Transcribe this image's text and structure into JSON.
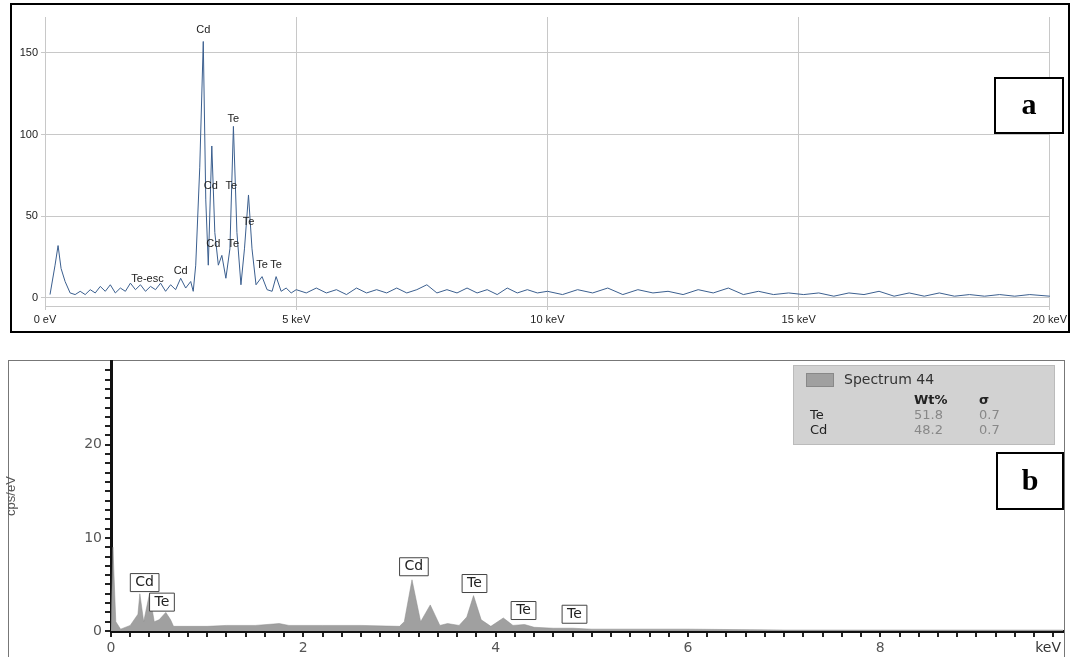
{
  "chart_data": [
    {
      "type": "line",
      "x": [
        0.1,
        0.2,
        0.26,
        0.32,
        0.4,
        0.5,
        0.6,
        0.7,
        0.8,
        0.9,
        1.0,
        1.1,
        1.2,
        1.3,
        1.4,
        1.5,
        1.6,
        1.7,
        1.8,
        1.9,
        2.0,
        2.1,
        2.2,
        2.3,
        2.4,
        2.5,
        2.6,
        2.7,
        2.8,
        2.9,
        2.95,
        3.0,
        3.08,
        3.15,
        3.2,
        3.25,
        3.32,
        3.38,
        3.45,
        3.52,
        3.6,
        3.68,
        3.75,
        3.82,
        3.9,
        3.97,
        4.05,
        4.12,
        4.2,
        4.32,
        4.42,
        4.52,
        4.6,
        4.7,
        4.8,
        4.9,
        5.0,
        5.2,
        5.4,
        5.6,
        5.8,
        6.0,
        6.2,
        6.4,
        6.6,
        6.8,
        7.0,
        7.2,
        7.4,
        7.6,
        7.8,
        8.0,
        8.2,
        8.4,
        8.6,
        8.8,
        9.0,
        9.2,
        9.4,
        9.6,
        9.8,
        10.0,
        10.3,
        10.6,
        10.9,
        11.2,
        11.5,
        11.8,
        12.1,
        12.4,
        12.7,
        13.0,
        13.3,
        13.6,
        13.9,
        14.2,
        14.5,
        14.8,
        15.1,
        15.4,
        15.7,
        16.0,
        16.3,
        16.6,
        16.9,
        17.2,
        17.5,
        17.8,
        18.1,
        18.4,
        18.7,
        19.0,
        19.3,
        19.6,
        20.0
      ],
      "series": [
        {
          "color": "#3b5f8f",
          "values": [
            2,
            20,
            32,
            18,
            10,
            3,
            2,
            4,
            2,
            5,
            3,
            7,
            4,
            8,
            3,
            6,
            4,
            9,
            5,
            8,
            4,
            7,
            5,
            9,
            4,
            8,
            5,
            12,
            6,
            10,
            4,
            20,
            80,
            157,
            60,
            20,
            93,
            40,
            20,
            26,
            12,
            30,
            105,
            40,
            8,
            30,
            63,
            30,
            8,
            13,
            5,
            4,
            13,
            4,
            6,
            3,
            5,
            3,
            6,
            3,
            5,
            2,
            6,
            3,
            5,
            3,
            6,
            3,
            5,
            8,
            3,
            5,
            3,
            6,
            3,
            5,
            2,
            6,
            3,
            5,
            3,
            4,
            2,
            5,
            3,
            6,
            2,
            5,
            3,
            4,
            2,
            5,
            3,
            6,
            2,
            4,
            2,
            3,
            2,
            3,
            1,
            3,
            2,
            4,
            1,
            3,
            1,
            3,
            1,
            2,
            1,
            2,
            1,
            2,
            1
          ]
        }
      ],
      "xlim": [
        0,
        20
      ],
      "xticks": [
        {
          "value": 0,
          "label": "0 eV"
        },
        {
          "value": 5,
          "label": "5 keV"
        },
        {
          "value": 10,
          "label": "10 keV"
        },
        {
          "value": 15,
          "label": "15 keV"
        },
        {
          "value": 20,
          "label": "20 keV"
        }
      ],
      "ylim": [
        -5,
        172
      ],
      "yticks": [
        0,
        50,
        100,
        150
      ],
      "grid": true,
      "marker": "none",
      "annotations": [
        "a",
        {
          "text": "Cd",
          "x": 3.15,
          "y": 160
        },
        {
          "text": "Te",
          "x": 3.75,
          "y": 105
        },
        {
          "text": "Cd",
          "x": 3.3,
          "y": 64
        },
        {
          "text": "Te",
          "x": 3.71,
          "y": 64
        },
        {
          "text": "Te",
          "x": 4.05,
          "y": 42
        },
        {
          "text": "Cd",
          "x": 3.35,
          "y": 29
        },
        {
          "text": "Te",
          "x": 3.75,
          "y": 29
        },
        {
          "text": "Te",
          "x": 4.32,
          "y": 16
        },
        {
          "text": "Te",
          "x": 4.6,
          "y": 16
        },
        {
          "text": "Cd",
          "x": 2.7,
          "y": 12
        },
        {
          "text": "Te-esc",
          "x": 2.04,
          "y": 7
        }
      ]
    },
    {
      "type": "area",
      "x": [
        0,
        0.02,
        0.05,
        0.1,
        0.2,
        0.28,
        0.3,
        0.34,
        0.4,
        0.45,
        0.5,
        0.57,
        0.62,
        0.65,
        0.8,
        1.0,
        1.2,
        1.5,
        1.75,
        1.85,
        2.2,
        2.6,
        3.0,
        3.05,
        3.13,
        3.22,
        3.32,
        3.42,
        3.5,
        3.62,
        3.7,
        3.77,
        3.85,
        3.95,
        4.08,
        4.18,
        4.3,
        4.4,
        4.6,
        4.8,
        5.0,
        6.0,
        7.0,
        8.0,
        9.0,
        9.9
      ],
      "series": [
        {
          "name": "Spectrum 44",
          "color": "#a0a0a0",
          "values": [
            0,
            9,
            1,
            0.2,
            0.6,
            1.8,
            4,
            1,
            4,
            1,
            1.2,
            2,
            1.2,
            0.5,
            0.5,
            0.5,
            0.6,
            0.6,
            0.8,
            0.6,
            0.6,
            0.6,
            0.5,
            1,
            5.5,
            1,
            2.8,
            0.6,
            0.8,
            0.6,
            1.5,
            3.8,
            1.2,
            0.5,
            1.4,
            0.6,
            0.7,
            0.4,
            0.3,
            0.3,
            0.2,
            0.2,
            0.1,
            0.1,
            0.1,
            0.1
          ]
        }
      ],
      "xlim": [
        0,
        9.9
      ],
      "xticks": [
        0,
        {
          "value": 0.2,
          "label": null
        },
        {
          "value": 0.4,
          "label": null
        },
        {
          "value": 0.6,
          "label": null
        },
        {
          "value": 0.8,
          "label": null
        },
        {
          "value": 1,
          "label": null
        },
        {
          "value": 1.2,
          "label": null
        },
        {
          "value": 1.4,
          "label": null
        },
        {
          "value": 1.6,
          "label": null
        },
        {
          "value": 1.8,
          "label": null
        },
        2,
        {
          "value": 2.2,
          "label": null
        },
        {
          "value": 2.4,
          "label": null
        },
        {
          "value": 2.6,
          "label": null
        },
        {
          "value": 2.8,
          "label": null
        },
        {
          "value": 3,
          "label": null
        },
        {
          "value": 3.2,
          "label": null
        },
        {
          "value": 3.4,
          "label": null
        },
        {
          "value": 3.6,
          "label": null
        },
        {
          "value": 3.8,
          "label": null
        },
        4,
        {
          "value": 4.2,
          "label": null
        },
        {
          "value": 4.4,
          "label": null
        },
        {
          "value": 4.6,
          "label": null
        },
        {
          "value": 4.8,
          "label": null
        },
        {
          "value": 5,
          "label": null
        },
        {
          "value": 5.2,
          "label": null
        },
        {
          "value": 5.4,
          "label": null
        },
        {
          "value": 5.6,
          "label": null
        },
        {
          "value": 5.8,
          "label": null
        },
        6,
        {
          "value": 6.2,
          "label": null
        },
        {
          "value": 6.4,
          "label": null
        },
        {
          "value": 6.6,
          "label": null
        },
        {
          "value": 6.8,
          "label": null
        },
        {
          "value": 7,
          "label": null
        },
        {
          "value": 7.2,
          "label": null
        },
        {
          "value": 7.4,
          "label": null
        },
        {
          "value": 7.6,
          "label": null
        },
        {
          "value": 7.8,
          "label": null
        },
        8,
        {
          "value": 8.2,
          "label": null
        },
        {
          "value": 8.4,
          "label": null
        },
        {
          "value": 8.6,
          "label": null
        },
        {
          "value": 8.8,
          "label": null
        },
        {
          "value": 9,
          "label": null
        },
        {
          "value": 9.2,
          "label": null
        },
        {
          "value": 9.4,
          "label": null
        },
        {
          "value": 9.6,
          "label": null
        },
        {
          "value": 9.8,
          "label": null
        }
      ],
      "xlabel": "keV",
      "ylabel": "cps/eV",
      "ylim": [
        0,
        29
      ],
      "yticks": [
        0,
        {
          "value": 1,
          "label": null
        },
        {
          "value": 2,
          "label": null
        },
        {
          "value": 3,
          "label": null
        },
        {
          "value": 4,
          "label": null
        },
        {
          "value": 5,
          "label": null
        },
        {
          "value": 6,
          "label": null
        },
        {
          "value": 7,
          "label": null
        },
        {
          "value": 8,
          "label": null
        },
        {
          "value": 9,
          "label": null
        },
        10,
        {
          "value": 11,
          "label": null
        },
        {
          "value": 12,
          "label": null
        },
        {
          "value": 13,
          "label": null
        },
        {
          "value": 14,
          "label": null
        },
        {
          "value": 15,
          "label": null
        },
        {
          "value": 16,
          "label": null
        },
        {
          "value": 17,
          "label": null
        },
        {
          "value": 18,
          "label": null
        },
        {
          "value": 19,
          "label": null
        },
        20,
        {
          "value": 21,
          "label": null
        },
        {
          "value": 22,
          "label": null
        },
        {
          "value": 23,
          "label": null
        },
        {
          "value": 24,
          "label": null
        },
        {
          "value": 25,
          "label": null
        },
        {
          "value": 26,
          "label": null
        },
        {
          "value": 27,
          "label": null
        },
        {
          "value": 28,
          "label": null
        }
      ],
      "legend": "top right",
      "marker": "none",
      "annotations": [
        "b",
        "Wt%",
        "σ",
        "Te",
        "51.8",
        "0.7",
        "Cd",
        "48.2",
        "0.7",
        {
          "text": "Cd",
          "x": 0.35,
          "y": 5.2
        },
        {
          "text": "Te",
          "x": 0.53,
          "y": 3.1
        },
        {
          "text": "Cd",
          "x": 3.15,
          "y": 6.9
        },
        {
          "text": "Te",
          "x": 3.78,
          "y": 5.1
        },
        {
          "text": "Te",
          "x": 4.29,
          "y": 2.2
        },
        {
          "text": "Te",
          "x": 4.82,
          "y": 1.8
        }
      ]
    }
  ]
}
